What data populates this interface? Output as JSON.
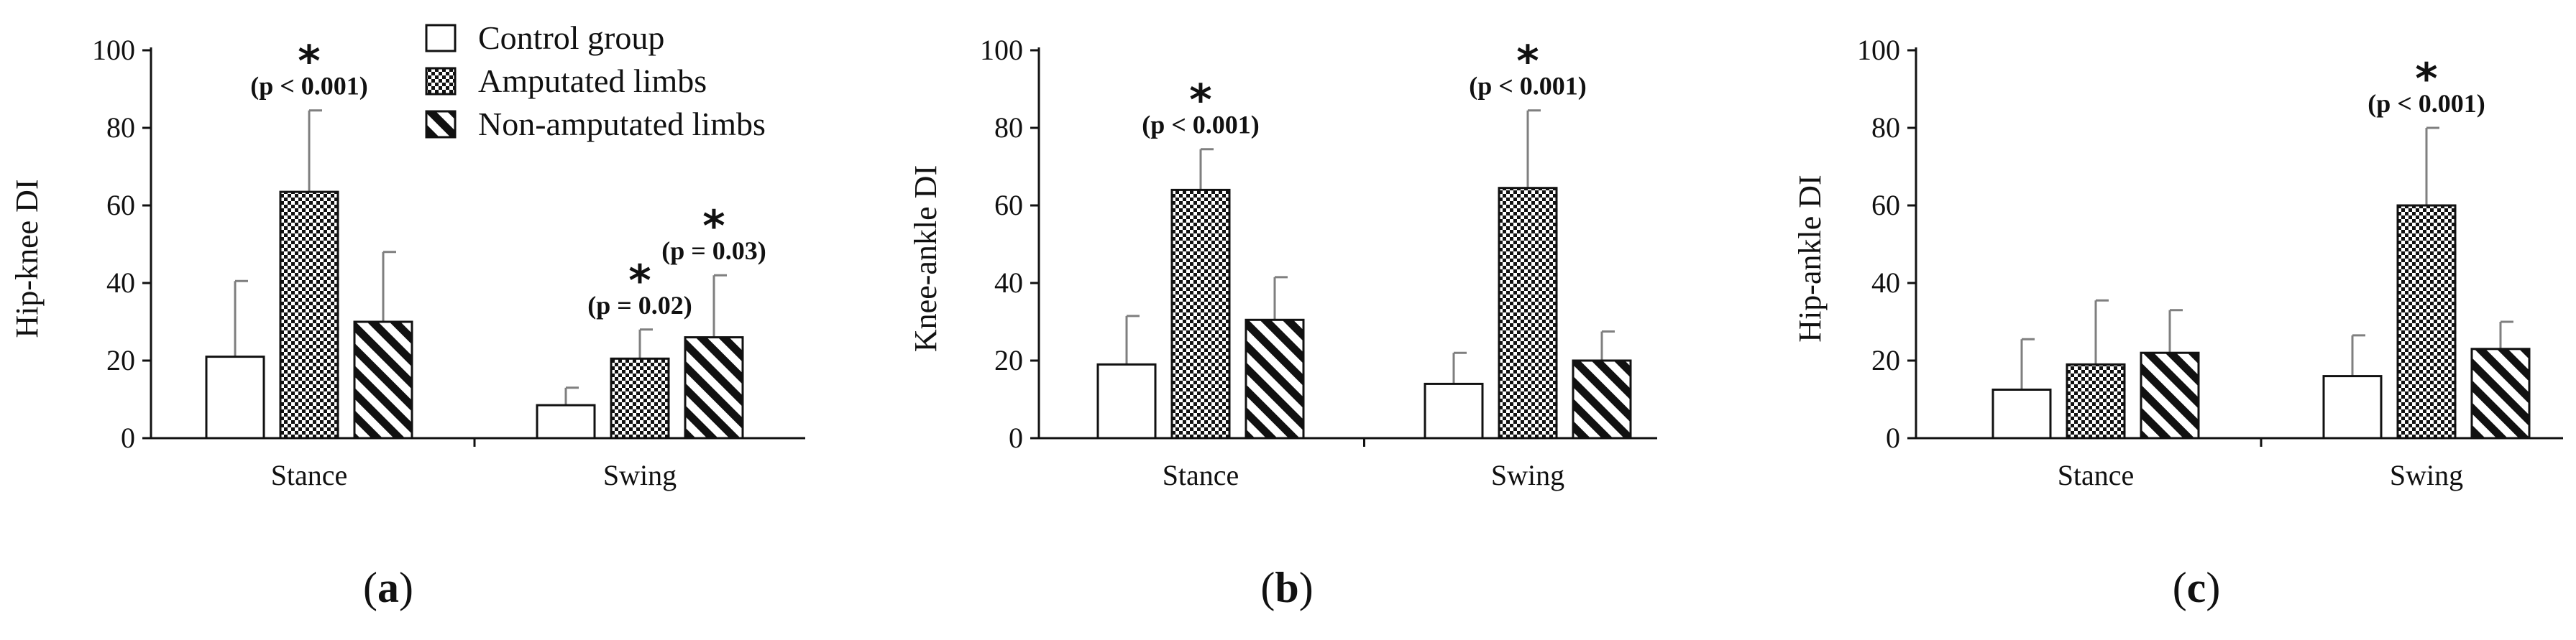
{
  "chart_data": [
    {
      "type": "bar",
      "panel_label": "a",
      "ylabel": "Hip-knee DI",
      "xlabel": "",
      "ylim": [
        0,
        100
      ],
      "yticks": [
        0,
        20,
        40,
        60,
        80,
        100
      ],
      "categories": [
        "Stance",
        "Swing"
      ],
      "series": [
        {
          "name": "Control group",
          "values": [
            21,
            8.5
          ],
          "errors": [
            19.5,
            4.5
          ],
          "pattern": "white"
        },
        {
          "name": "Amputated limbs",
          "values": [
            63.5,
            20.5
          ],
          "errors": [
            21,
            7.5
          ],
          "pattern": "checker"
        },
        {
          "name": "Non-amputated limbs",
          "values": [
            30,
            26
          ],
          "errors": [
            18,
            16
          ],
          "pattern": "diagonal"
        }
      ],
      "annotations": [
        {
          "category": 0,
          "series": 1,
          "star": "*",
          "text": "(p < 0.001)"
        },
        {
          "category": 1,
          "series": 1,
          "star": "*",
          "text": "(p = 0.02)"
        },
        {
          "category": 1,
          "series": 2,
          "star": "*",
          "text": "(p = 0.03)"
        }
      ],
      "legend": {
        "placement": "top-right",
        "entries": [
          "Control group",
          "Amputated limbs",
          "Non-amputated limbs"
        ]
      }
    },
    {
      "type": "bar",
      "panel_label": "b",
      "ylabel": "Knee-ankle DI",
      "xlabel": "",
      "ylim": [
        0,
        100
      ],
      "yticks": [
        0,
        20,
        40,
        60,
        80,
        100
      ],
      "categories": [
        "Stance",
        "Swing"
      ],
      "series": [
        {
          "name": "Control group",
          "values": [
            19,
            14
          ],
          "errors": [
            12.5,
            8
          ],
          "pattern": "white"
        },
        {
          "name": "Amputated limbs",
          "values": [
            64,
            64.5
          ],
          "errors": [
            10.5,
            20
          ],
          "pattern": "checker"
        },
        {
          "name": "Non-amputated limbs",
          "values": [
            30.5,
            20
          ],
          "errors": [
            11,
            7.5
          ],
          "pattern": "diagonal"
        }
      ],
      "annotations": [
        {
          "category": 0,
          "series": 1,
          "star": "*",
          "text": "(p < 0.001)"
        },
        {
          "category": 1,
          "series": 1,
          "star": "*",
          "text": "(p < 0.001)"
        }
      ]
    },
    {
      "type": "bar",
      "panel_label": "c",
      "ylabel": "Hip-ankle DI",
      "xlabel": "",
      "ylim": [
        0,
        100
      ],
      "yticks": [
        0,
        20,
        40,
        60,
        80,
        100
      ],
      "categories": [
        "Stance",
        "Swing"
      ],
      "series": [
        {
          "name": "Control group",
          "values": [
            12.5,
            16
          ],
          "errors": [
            13,
            10.5
          ],
          "pattern": "white"
        },
        {
          "name": "Amputated limbs",
          "values": [
            19,
            60
          ],
          "errors": [
            16.5,
            20
          ],
          "pattern": "checker"
        },
        {
          "name": "Non-amputated limbs",
          "values": [
            22,
            23
          ],
          "errors": [
            11,
            7
          ],
          "pattern": "diagonal"
        }
      ],
      "annotations": [
        {
          "category": 1,
          "series": 1,
          "star": "*",
          "text": "(p < 0.001)"
        }
      ]
    }
  ],
  "colors": {
    "ink": "#111111",
    "error_bar": "#7f7f7f",
    "background": "#ffffff"
  }
}
